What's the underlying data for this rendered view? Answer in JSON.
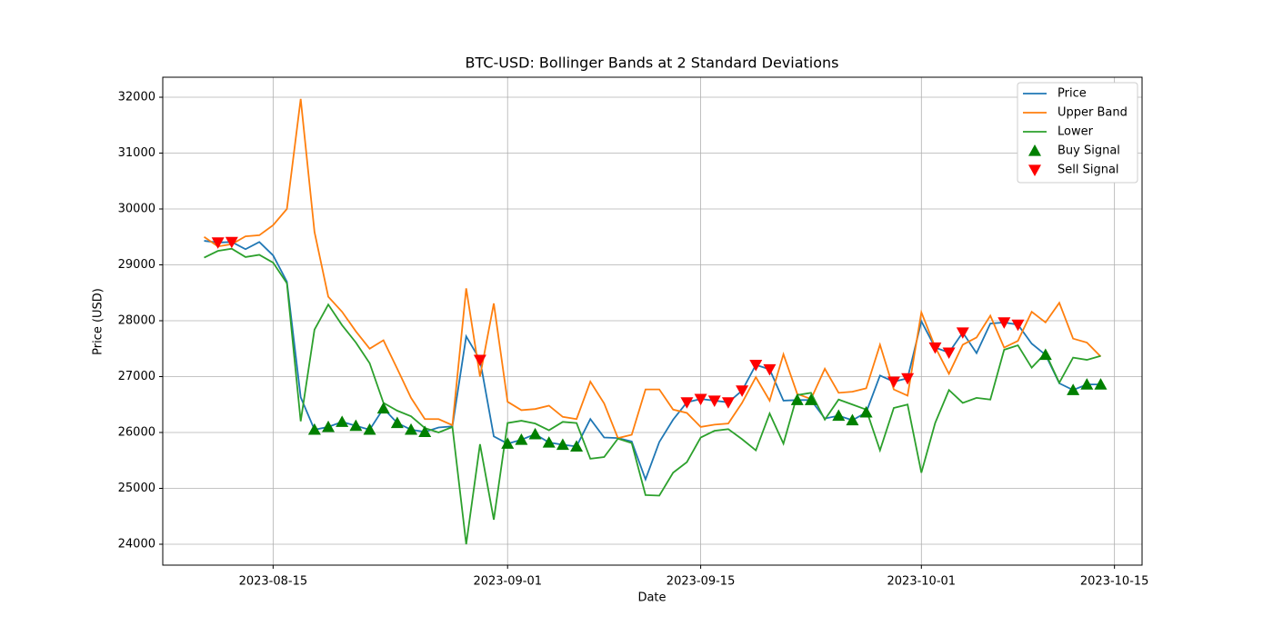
{
  "chart_data": {
    "type": "line",
    "title": "BTC-USD: Bollinger Bands at 2 Standard Deviations",
    "x_label": "Date",
    "y_label": "Price (USD)",
    "x": [
      "2023-08-10",
      "2023-08-11",
      "2023-08-12",
      "2023-08-13",
      "2023-08-14",
      "2023-08-15",
      "2023-08-16",
      "2023-08-17",
      "2023-08-18",
      "2023-08-19",
      "2023-08-20",
      "2023-08-21",
      "2023-08-22",
      "2023-08-23",
      "2023-08-24",
      "2023-08-25",
      "2023-08-26",
      "2023-08-27",
      "2023-08-28",
      "2023-08-29",
      "2023-08-30",
      "2023-08-31",
      "2023-09-01",
      "2023-09-02",
      "2023-09-03",
      "2023-09-04",
      "2023-09-05",
      "2023-09-06",
      "2023-09-07",
      "2023-09-08",
      "2023-09-09",
      "2023-09-10",
      "2023-09-11",
      "2023-09-12",
      "2023-09-13",
      "2023-09-14",
      "2023-09-15",
      "2023-09-16",
      "2023-09-17",
      "2023-09-18",
      "2023-09-19",
      "2023-09-20",
      "2023-09-21",
      "2023-09-22",
      "2023-09-23",
      "2023-09-24",
      "2023-09-25",
      "2023-09-26",
      "2023-09-27",
      "2023-09-28",
      "2023-09-29",
      "2023-09-30",
      "2023-10-01",
      "2023-10-02",
      "2023-10-03",
      "2023-10-04",
      "2023-10-05",
      "2023-10-06",
      "2023-10-07",
      "2023-10-08",
      "2023-10-09",
      "2023-10-10",
      "2023-10-11",
      "2023-10-12",
      "2023-10-13",
      "2023-10-14"
    ],
    "series": [
      {
        "name": "Price",
        "color": "#1f77b4",
        "values": [
          29430,
          29400,
          29410,
          29280,
          29410,
          29170,
          28700,
          26630,
          26050,
          26100,
          26190,
          26120,
          26050,
          26430,
          26170,
          26050,
          26010,
          26090,
          26110,
          27720,
          27300,
          25930,
          25800,
          25870,
          25970,
          25820,
          25780,
          25750,
          26240,
          25910,
          25900,
          25840,
          25160,
          25830,
          26230,
          26540,
          26600,
          26570,
          26540,
          26750,
          27210,
          27130,
          26570,
          26580,
          26580,
          26250,
          26300,
          26220,
          26360,
          27020,
          26910,
          26970,
          27990,
          27520,
          27430,
          27790,
          27420,
          27950,
          27970,
          27930,
          27590,
          27390,
          26880,
          26760,
          26860,
          26860
        ]
      },
      {
        "name": "Upper Band",
        "color": "#ff7f0e",
        "values": [
          29500,
          29330,
          29370,
          29510,
          29530,
          29710,
          30000,
          31970,
          29590,
          28430,
          28160,
          27810,
          27500,
          27650,
          27140,
          26620,
          26240,
          26240,
          26130,
          28580,
          27000,
          28310,
          26550,
          26400,
          26420,
          26480,
          26280,
          26240,
          26910,
          26520,
          25900,
          25960,
          26770,
          26770,
          26410,
          26350,
          26100,
          26140,
          26160,
          26530,
          26990,
          26570,
          27400,
          26690,
          26600,
          27140,
          26710,
          26730,
          26790,
          27570,
          26770,
          26660,
          28150,
          27530,
          27050,
          27570,
          27700,
          28090,
          27520,
          27640,
          28160,
          27970,
          28320,
          27680,
          27610,
          27360
        ]
      },
      {
        "name": "Lower",
        "color": "#2ca02c",
        "values": [
          29130,
          29250,
          29290,
          29140,
          29180,
          29040,
          28670,
          26200,
          27840,
          28290,
          27920,
          27610,
          27240,
          26530,
          26390,
          26290,
          26080,
          26000,
          26100,
          24000,
          25790,
          24440,
          26170,
          26210,
          26160,
          26040,
          26190,
          26170,
          25530,
          25560,
          25890,
          25810,
          24880,
          24870,
          25280,
          25470,
          25910,
          26030,
          26060,
          25880,
          25680,
          26340,
          25800,
          26670,
          26710,
          26230,
          26590,
          26500,
          26410,
          25680,
          26440,
          26500,
          25280,
          26170,
          26760,
          26530,
          26620,
          26590,
          27480,
          27560,
          27160,
          27420,
          26890,
          27340,
          27300,
          27370
        ]
      },
      {
        "name": "Buy Signal",
        "color": "#008000",
        "marker": "^",
        "values": [
          null,
          null,
          null,
          null,
          null,
          null,
          null,
          null,
          26050,
          26100,
          26190,
          26120,
          26050,
          26430,
          26170,
          26050,
          26010,
          null,
          null,
          null,
          null,
          null,
          25800,
          25870,
          25970,
          25820,
          25780,
          25750,
          null,
          null,
          null,
          null,
          null,
          null,
          null,
          null,
          null,
          null,
          null,
          null,
          null,
          null,
          null,
          26580,
          26580,
          null,
          26300,
          26220,
          26360,
          null,
          null,
          null,
          null,
          null,
          null,
          null,
          null,
          null,
          null,
          null,
          null,
          27390,
          null,
          26760,
          26860,
          26860
        ]
      },
      {
        "name": "Sell Signal",
        "color": "#ff0000",
        "marker": "v",
        "values": [
          null,
          29400,
          29410,
          null,
          null,
          null,
          null,
          null,
          null,
          null,
          null,
          null,
          null,
          null,
          null,
          null,
          null,
          null,
          null,
          null,
          27300,
          null,
          null,
          null,
          null,
          null,
          null,
          null,
          null,
          null,
          null,
          null,
          null,
          null,
          null,
          26540,
          26600,
          26570,
          26540,
          26750,
          27210,
          27130,
          null,
          null,
          null,
          null,
          null,
          null,
          null,
          null,
          26910,
          26970,
          null,
          27520,
          27430,
          27790,
          null,
          null,
          27970,
          27930,
          null,
          null,
          null,
          null,
          null,
          null
        ]
      }
    ],
    "xlim": [
      "2023-08-07",
      "2023-10-17"
    ],
    "xticks": [
      "2023-08-15",
      "2023-09-01",
      "2023-09-15",
      "2023-10-01",
      "2023-10-15"
    ],
    "ylim": [
      23626,
      32358
    ],
    "yticks": [
      24000,
      25000,
      26000,
      27000,
      28000,
      29000,
      30000,
      31000,
      32000
    ],
    "grid": true,
    "legend": "upper right"
  }
}
